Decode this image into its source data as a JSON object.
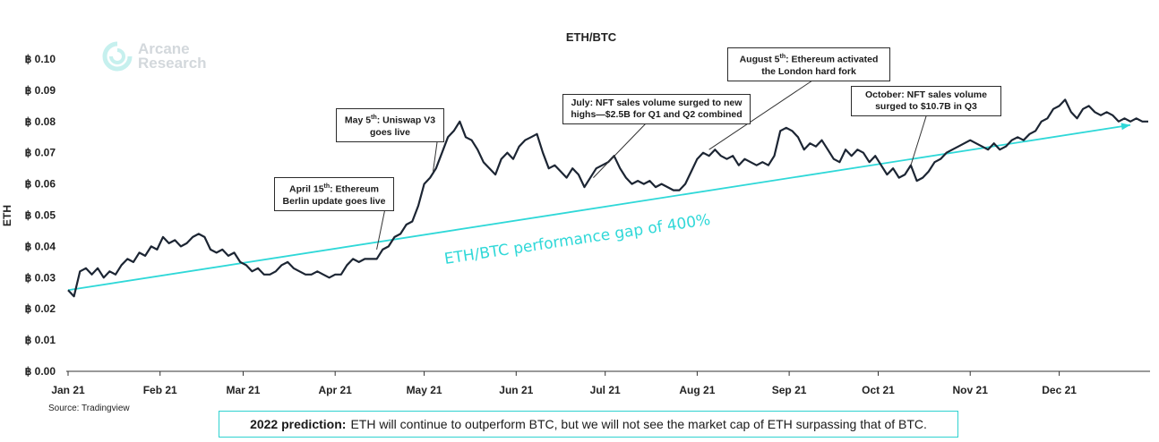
{
  "logo": {
    "line1": "Arcane",
    "line2": "Research"
  },
  "source": "Source: Tradingview",
  "prediction": {
    "label": "2022 prediction:",
    "text": "ETH will continue to outperform BTC, but we will not see the market cap of ETH surpassing that of BTC."
  },
  "trend_label": "ETH/BTC performance gap of 400%",
  "annotations": [
    {
      "line1": "April 15",
      "sup": "th",
      "rest1": ": Ethereum",
      "line2": "Berlin update goes live"
    },
    {
      "line1": "May 5",
      "sup": "th",
      "rest1": ": Uniswap V3",
      "line2": "goes live"
    },
    {
      "line1": "July: NFT sales volume surged to new",
      "sup": "",
      "rest1": "",
      "line2": "highs—$2.5B for Q1 and Q2 combined"
    },
    {
      "line1": "August 5",
      "sup": "th",
      "rest1": ": Ethereum activated",
      "line2": "the London hard fork"
    },
    {
      "line1": "October: NFT sales volume",
      "sup": "",
      "rest1": "",
      "line2": "surged to $10.7B in Q3"
    }
  ],
  "colors": {
    "line": "#1c2533",
    "trend": "#2fd8d8",
    "axis": "#333333"
  },
  "chart_data": {
    "type": "line",
    "title": "ETH/BTC",
    "ylabel": "ETH",
    "xlabel": "",
    "ylim": [
      0,
      0.1
    ],
    "y_ticks": [
      "฿ 0.00",
      "฿ 0.01",
      "฿ 0.02",
      "฿ 0.03",
      "฿ 0.04",
      "฿ 0.05",
      "฿ 0.06",
      "฿ 0.07",
      "฿ 0.08",
      "฿ 0.09",
      "฿ 0.10"
    ],
    "y_tick_values": [
      0,
      0.01,
      0.02,
      0.03,
      0.04,
      0.05,
      0.06,
      0.07,
      0.08,
      0.09,
      0.1
    ],
    "x_ticks": [
      "Jan 21",
      "Feb 21",
      "Mar 21",
      "Apr 21",
      "May 21",
      "Jun 21",
      "Jul 21",
      "Aug 21",
      "Sep 21",
      "Oct 21",
      "Nov 21",
      "Dec 21"
    ],
    "grid": false,
    "series": [
      {
        "values_by_day": [
          [
            0,
            0.026
          ],
          [
            2,
            0.024
          ],
          [
            4,
            0.032
          ],
          [
            6,
            0.033
          ],
          [
            8,
            0.031
          ],
          [
            10,
            0.033
          ],
          [
            12,
            0.03
          ],
          [
            14,
            0.032
          ],
          [
            16,
            0.031
          ],
          [
            18,
            0.034
          ],
          [
            20,
            0.036
          ],
          [
            22,
            0.035
          ],
          [
            24,
            0.038
          ],
          [
            26,
            0.037
          ],
          [
            28,
            0.04
          ],
          [
            30,
            0.039
          ],
          [
            32,
            0.043
          ],
          [
            34,
            0.041
          ],
          [
            36,
            0.042
          ],
          [
            38,
            0.04
          ],
          [
            40,
            0.041
          ],
          [
            42,
            0.043
          ],
          [
            44,
            0.044
          ],
          [
            46,
            0.043
          ],
          [
            48,
            0.039
          ],
          [
            50,
            0.038
          ],
          [
            52,
            0.039
          ],
          [
            54,
            0.037
          ],
          [
            56,
            0.038
          ],
          [
            58,
            0.035
          ],
          [
            60,
            0.034
          ],
          [
            62,
            0.032
          ],
          [
            64,
            0.033
          ],
          [
            66,
            0.031
          ],
          [
            68,
            0.031
          ],
          [
            70,
            0.032
          ],
          [
            72,
            0.034
          ],
          [
            74,
            0.035
          ],
          [
            76,
            0.033
          ],
          [
            78,
            0.032
          ],
          [
            80,
            0.031
          ],
          [
            82,
            0.031
          ],
          [
            84,
            0.032
          ],
          [
            86,
            0.031
          ],
          [
            88,
            0.03
          ],
          [
            90,
            0.031
          ],
          [
            92,
            0.031
          ],
          [
            94,
            0.034
          ],
          [
            96,
            0.036
          ],
          [
            98,
            0.035
          ],
          [
            100,
            0.036
          ],
          [
            102,
            0.036
          ],
          [
            104,
            0.036
          ],
          [
            106,
            0.039
          ],
          [
            108,
            0.04
          ],
          [
            110,
            0.043
          ],
          [
            112,
            0.044
          ],
          [
            114,
            0.047
          ],
          [
            116,
            0.048
          ],
          [
            118,
            0.053
          ],
          [
            120,
            0.06
          ],
          [
            122,
            0.062
          ],
          [
            124,
            0.065
          ],
          [
            126,
            0.07
          ],
          [
            128,
            0.075
          ],
          [
            130,
            0.077
          ],
          [
            132,
            0.08
          ],
          [
            134,
            0.075
          ],
          [
            136,
            0.074
          ],
          [
            138,
            0.071
          ],
          [
            140,
            0.067
          ],
          [
            142,
            0.065
          ],
          [
            144,
            0.063
          ],
          [
            146,
            0.068
          ],
          [
            148,
            0.07
          ],
          [
            150,
            0.068
          ],
          [
            152,
            0.072
          ],
          [
            154,
            0.074
          ],
          [
            156,
            0.075
          ],
          [
            158,
            0.076
          ],
          [
            160,
            0.07
          ],
          [
            162,
            0.065
          ],
          [
            164,
            0.066
          ],
          [
            166,
            0.064
          ],
          [
            168,
            0.062
          ],
          [
            170,
            0.065
          ],
          [
            172,
            0.063
          ],
          [
            174,
            0.059
          ],
          [
            176,
            0.062
          ],
          [
            178,
            0.065
          ],
          [
            180,
            0.066
          ],
          [
            182,
            0.067
          ],
          [
            184,
            0.069
          ],
          [
            186,
            0.065
          ],
          [
            188,
            0.062
          ],
          [
            190,
            0.06
          ],
          [
            192,
            0.061
          ],
          [
            194,
            0.06
          ],
          [
            196,
            0.061
          ],
          [
            198,
            0.059
          ],
          [
            200,
            0.06
          ],
          [
            202,
            0.059
          ],
          [
            204,
            0.058
          ],
          [
            206,
            0.058
          ],
          [
            208,
            0.06
          ],
          [
            210,
            0.064
          ],
          [
            212,
            0.068
          ],
          [
            214,
            0.07
          ],
          [
            216,
            0.069
          ],
          [
            218,
            0.071
          ],
          [
            220,
            0.069
          ],
          [
            222,
            0.068
          ],
          [
            224,
            0.069
          ],
          [
            226,
            0.066
          ],
          [
            228,
            0.068
          ],
          [
            230,
            0.067
          ],
          [
            232,
            0.066
          ],
          [
            234,
            0.067
          ],
          [
            236,
            0.066
          ],
          [
            238,
            0.069
          ],
          [
            240,
            0.077
          ],
          [
            242,
            0.078
          ],
          [
            244,
            0.077
          ],
          [
            246,
            0.075
          ],
          [
            248,
            0.071
          ],
          [
            250,
            0.073
          ],
          [
            252,
            0.072
          ],
          [
            254,
            0.074
          ],
          [
            256,
            0.071
          ],
          [
            258,
            0.068
          ],
          [
            260,
            0.067
          ],
          [
            262,
            0.071
          ],
          [
            264,
            0.069
          ],
          [
            266,
            0.071
          ],
          [
            268,
            0.07
          ],
          [
            270,
            0.067
          ],
          [
            272,
            0.069
          ],
          [
            274,
            0.066
          ],
          [
            276,
            0.063
          ],
          [
            278,
            0.065
          ],
          [
            280,
            0.062
          ],
          [
            282,
            0.063
          ],
          [
            284,
            0.066
          ],
          [
            286,
            0.061
          ],
          [
            288,
            0.062
          ],
          [
            290,
            0.064
          ],
          [
            292,
            0.067
          ],
          [
            294,
            0.068
          ],
          [
            296,
            0.07
          ],
          [
            298,
            0.071
          ],
          [
            300,
            0.072
          ],
          [
            302,
            0.073
          ],
          [
            304,
            0.074
          ],
          [
            306,
            0.073
          ],
          [
            308,
            0.072
          ],
          [
            310,
            0.071
          ],
          [
            312,
            0.073
          ],
          [
            314,
            0.071
          ],
          [
            316,
            0.072
          ],
          [
            318,
            0.074
          ],
          [
            320,
            0.075
          ],
          [
            322,
            0.074
          ],
          [
            324,
            0.076
          ],
          [
            326,
            0.077
          ],
          [
            328,
            0.08
          ],
          [
            330,
            0.081
          ],
          [
            332,
            0.084
          ],
          [
            334,
            0.085
          ],
          [
            336,
            0.087
          ],
          [
            338,
            0.083
          ],
          [
            340,
            0.081
          ],
          [
            342,
            0.084
          ],
          [
            344,
            0.085
          ],
          [
            346,
            0.083
          ],
          [
            348,
            0.082
          ],
          [
            350,
            0.083
          ],
          [
            352,
            0.082
          ],
          [
            354,
            0.08
          ],
          [
            356,
            0.081
          ],
          [
            358,
            0.08
          ],
          [
            360,
            0.081
          ],
          [
            362,
            0.08
          ],
          [
            364,
            0.08
          ]
        ]
      }
    ],
    "trend_line": {
      "start": [
        0,
        0.026
      ],
      "end": [
        364,
        0.078
      ]
    }
  }
}
